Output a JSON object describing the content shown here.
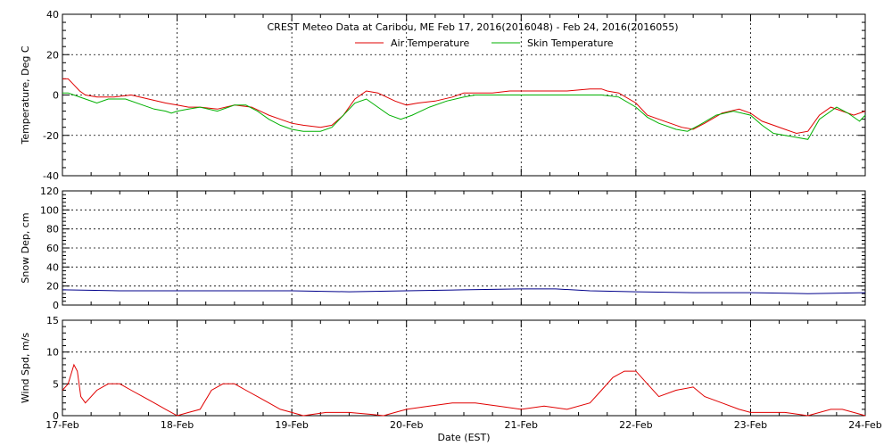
{
  "chart_data": [
    {
      "type": "line",
      "title": "CREST Meteo Data at Caribou, ME   Feb 17, 2016(2016048) - Feb 24, 2016(2016055)",
      "ylabel": "Temperature, Deg C",
      "ylim": [
        -40,
        40
      ],
      "yticks": [
        -40,
        -20,
        0,
        20,
        40
      ],
      "xlim": [
        0,
        7
      ],
      "x_unit": "days since 17-Feb",
      "grid": true,
      "legend_position": "top-center",
      "series": [
        {
          "name": "Air Temperature",
          "color": "#e00000",
          "x": [
            0,
            0.05,
            0.1,
            0.15,
            0.2,
            0.3,
            0.45,
            0.6,
            0.75,
            0.9,
            1.0,
            1.1,
            1.2,
            1.35,
            1.5,
            1.65,
            1.8,
            1.9,
            2.0,
            2.1,
            2.25,
            2.35,
            2.45,
            2.55,
            2.65,
            2.75,
            2.9,
            3.0,
            3.1,
            3.25,
            3.4,
            3.5,
            3.6,
            3.75,
            3.9,
            4.0,
            4.2,
            4.4,
            4.6,
            4.7,
            4.75,
            4.85,
            5.0,
            5.1,
            5.2,
            5.3,
            5.4,
            5.5,
            5.6,
            5.75,
            5.9,
            6.0,
            6.1,
            6.2,
            6.3,
            6.4,
            6.5,
            6.6,
            6.7,
            6.8,
            6.9,
            7.0
          ],
          "values": [
            8,
            8,
            5,
            2,
            0,
            -1,
            -1,
            0,
            -2,
            -4,
            -5,
            -6,
            -6,
            -7,
            -5,
            -6,
            -10,
            -12,
            -14,
            -15,
            -16,
            -15,
            -10,
            -2,
            2,
            1,
            -3,
            -5,
            -4,
            -3,
            -1,
            1,
            1,
            1,
            2,
            2,
            2,
            2,
            3,
            3,
            2,
            1,
            -4,
            -10,
            -12,
            -14,
            -16,
            -17,
            -14,
            -9,
            -7,
            -9,
            -13,
            -15,
            -17,
            -19,
            -18,
            -10,
            -6,
            -8,
            -10,
            -8
          ]
        },
        {
          "name": "Skin Temperature",
          "color": "#00b000",
          "x": [
            0,
            0.05,
            0.1,
            0.2,
            0.3,
            0.4,
            0.55,
            0.7,
            0.8,
            0.9,
            0.95,
            1.0,
            1.1,
            1.2,
            1.35,
            1.5,
            1.6,
            1.7,
            1.8,
            1.9,
            2.0,
            2.1,
            2.25,
            2.35,
            2.45,
            2.55,
            2.65,
            2.75,
            2.85,
            2.95,
            3.05,
            3.2,
            3.35,
            3.5,
            3.6,
            3.8,
            4.0,
            4.2,
            4.4,
            4.6,
            4.7,
            4.85,
            5.0,
            5.1,
            5.2,
            5.35,
            5.45,
            5.55,
            5.7,
            5.85,
            6.0,
            6.1,
            6.2,
            6.3,
            6.4,
            6.5,
            6.6,
            6.75,
            6.85,
            6.95,
            7.0
          ],
          "values": [
            1,
            1,
            0,
            -2,
            -4,
            -2,
            -2,
            -5,
            -7,
            -8,
            -9,
            -8,
            -7,
            -6,
            -8,
            -5,
            -5,
            -8,
            -12,
            -15,
            -17,
            -18,
            -18,
            -16,
            -10,
            -4,
            -2,
            -6,
            -10,
            -12,
            -10,
            -6,
            -3,
            -1,
            0,
            0,
            0,
            0,
            0,
            0,
            0,
            -1,
            -6,
            -11,
            -14,
            -17,
            -18,
            -15,
            -10,
            -8,
            -10,
            -15,
            -19,
            -20,
            -21,
            -22,
            -12,
            -6,
            -9,
            -13,
            -10
          ]
        }
      ]
    },
    {
      "type": "line",
      "ylabel": "Snow Dep, cm",
      "ylim": [
        0,
        120
      ],
      "yticks": [
        0,
        20,
        40,
        60,
        80,
        100,
        120
      ],
      "xlim": [
        0,
        7
      ],
      "grid": true,
      "series": [
        {
          "color": "#00008b",
          "x": [
            0,
            0.5,
            1.0,
            1.5,
            2.0,
            2.5,
            3.0,
            3.5,
            4.0,
            4.3,
            4.6,
            5.0,
            5.5,
            6.0,
            6.5,
            7.0
          ],
          "values": [
            16,
            15,
            15,
            15,
            15,
            14,
            15,
            16,
            17,
            17,
            15,
            14,
            13,
            13,
            12,
            13
          ]
        }
      ]
    },
    {
      "type": "line",
      "ylabel": "Wind Spd, m/s",
      "xlabel": "Date (EST)",
      "ylim": [
        0,
        15
      ],
      "yticks": [
        0,
        5,
        10,
        15
      ],
      "xlim": [
        0,
        7
      ],
      "xtick_labels": [
        "17-Feb",
        "18-Feb",
        "19-Feb",
        "20-Feb",
        "21-Feb",
        "22-Feb",
        "23-Feb",
        "24-Feb"
      ],
      "grid": true,
      "series": [
        {
          "color": "#e00000",
          "x": [
            0,
            0.05,
            0.1,
            0.13,
            0.16,
            0.2,
            0.3,
            0.4,
            0.5,
            0.6,
            0.7,
            0.8,
            0.9,
            0.95,
            1.0,
            1.1,
            1.2,
            1.3,
            1.4,
            1.5,
            1.6,
            1.7,
            1.8,
            1.9,
            2.0,
            2.1,
            2.3,
            2.5,
            2.7,
            2.8,
            2.9,
            3.0,
            3.2,
            3.4,
            3.6,
            3.8,
            4.0,
            4.2,
            4.4,
            4.6,
            4.7,
            4.8,
            4.9,
            5.0,
            5.1,
            5.2,
            5.35,
            5.5,
            5.6,
            5.75,
            5.9,
            6.0,
            6.1,
            6.3,
            6.5,
            6.7,
            6.8,
            6.9,
            7.0
          ],
          "values": [
            4,
            5,
            8,
            7,
            3,
            2,
            4,
            5,
            5,
            4,
            3,
            2,
            1,
            0.5,
            0,
            0.5,
            1,
            4,
            5,
            5,
            4,
            3,
            2,
            1,
            0.5,
            0,
            0.5,
            0.5,
            0.2,
            0,
            0.5,
            1,
            1.5,
            2,
            2,
            1.5,
            1,
            1.5,
            1,
            2,
            4,
            6,
            7,
            7,
            5,
            3,
            4,
            4.5,
            3,
            2,
            1,
            0.5,
            0.5,
            0.5,
            0,
            1,
            1,
            0.5,
            0
          ]
        }
      ]
    }
  ]
}
